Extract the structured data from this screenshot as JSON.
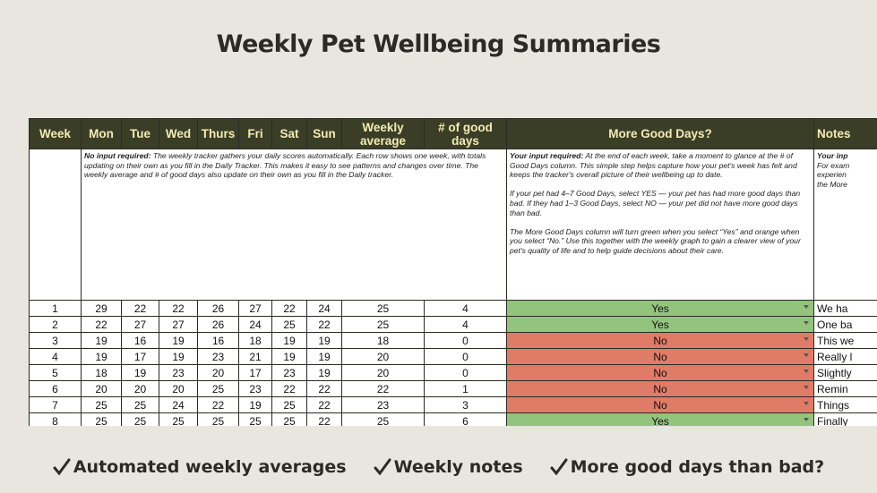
{
  "title": "Weekly Pet Wellbeing Summaries",
  "table": {
    "columns": [
      "Week",
      "Mon",
      "Tue",
      "Wed",
      "Thurs",
      "Fri",
      "Sat",
      "Sun",
      "Weekly average",
      "# of good days",
      "More Good Days?",
      "Notes"
    ],
    "instructions": {
      "scores": {
        "lead": "No input required:",
        "text": "The weekly tracker gathers your daily scores automatically. Each row shows one week, with totals updating on their own as you fill in the Daily Tracker. This makes it easy to see patterns and changes over time. The weekly average and # of good days also update on their own as you fill in the Daily tracker."
      },
      "more_good_days": {
        "lead": "Your input required:",
        "paragraphs": [
          "At the end of each week, take a moment to glance at the # of Good Days column. This simple step helps capture how your pet's week has felt and keeps the tracker's overall picture of their wellbeing up to date.",
          "If your pet had 4–7 Good Days, select YES — your pet has had more good days than bad. If they had 1–3 Good Days, select NO — your pet did not have more good days than bad.",
          "The More Good Days column will turn green when you select “Yes” and orange when you select “No.” Use this together with the weekly graph to gain a clearer view of your pet's quality of life and to help guide decisions about their care."
        ]
      },
      "notes": [
        "Your inp",
        "For exam",
        "experien",
        "the More"
      ]
    },
    "rows": [
      [
        1,
        29,
        22,
        22,
        26,
        27,
        22,
        24,
        25,
        4,
        "Yes",
        "We ha"
      ],
      [
        2,
        22,
        27,
        27,
        26,
        24,
        25,
        22,
        25,
        4,
        "Yes",
        "One ba"
      ],
      [
        3,
        19,
        16,
        19,
        16,
        18,
        19,
        19,
        18,
        0,
        "No",
        "This we"
      ],
      [
        4,
        19,
        17,
        19,
        23,
        21,
        19,
        19,
        20,
        0,
        "No",
        "Really l"
      ],
      [
        5,
        18,
        19,
        23,
        20,
        17,
        23,
        19,
        20,
        0,
        "No",
        "Slightly"
      ],
      [
        6,
        20,
        20,
        20,
        25,
        23,
        22,
        22,
        22,
        1,
        "No",
        "Remin"
      ],
      [
        7,
        25,
        25,
        24,
        22,
        19,
        25,
        22,
        23,
        3,
        "No",
        "Things"
      ],
      [
        8,
        25,
        25,
        25,
        25,
        25,
        25,
        22,
        25,
        6,
        "Yes",
        "Finally"
      ]
    ],
    "row_colors": [
      "#93c47d",
      "#93c47d",
      "#e07b67",
      "#e07b67",
      "#e07b67",
      "#e07b67",
      "#e07b67",
      "#93c47d"
    ]
  },
  "features": [
    "Automated weekly averages",
    "Weekly notes",
    "More good days than bad?"
  ]
}
